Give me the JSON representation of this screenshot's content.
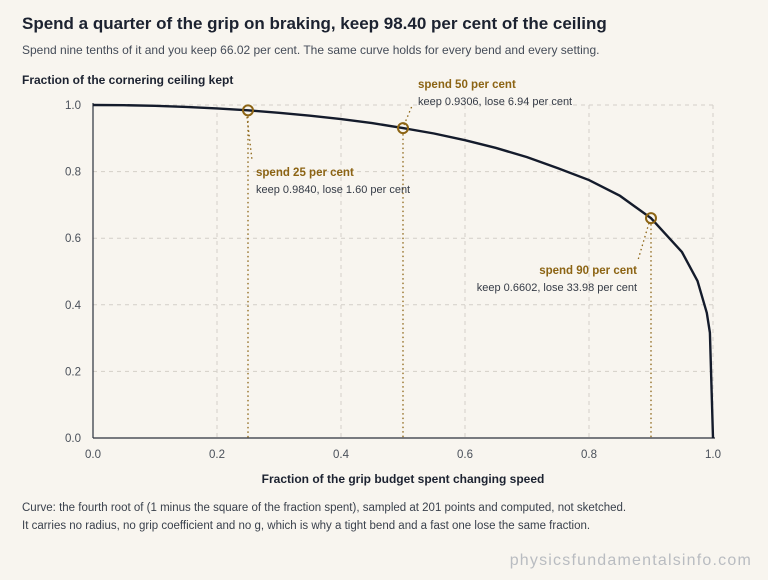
{
  "header": {
    "title": "Spend a quarter of the grip on braking, keep 98.40 per cent of the ceiling",
    "subtitle": "Spend nine tenths of it and you keep 66.02 per cent. The same curve holds for every bend and every setting."
  },
  "chart_data": {
    "type": "line",
    "ylabel": "Fraction of the cornering ceiling kept",
    "xlabel": "Fraction of the grip budget spent changing speed",
    "xlim": [
      0,
      1
    ],
    "ylim": [
      0,
      1
    ],
    "xticks": [
      "0.0",
      "0.2",
      "0.4",
      "0.6",
      "0.8",
      "1.0"
    ],
    "yticks": [
      "0.0",
      "0.2",
      "0.4",
      "0.6",
      "0.8",
      "1.0"
    ],
    "grid": true,
    "series": [
      {
        "x": [
          0.0,
          0.05,
          0.1,
          0.15,
          0.2,
          0.25,
          0.3,
          0.35,
          0.4,
          0.45,
          0.5,
          0.55,
          0.6,
          0.65,
          0.7,
          0.75,
          0.8,
          0.85,
          0.9,
          0.95,
          0.975,
          0.99,
          0.995,
          1.0
        ],
        "y": [
          1.0,
          0.9994,
          0.9975,
          0.9943,
          0.9898,
          0.984,
          0.9767,
          0.968,
          0.9577,
          0.9458,
          0.9306,
          0.9144,
          0.8944,
          0.871,
          0.8434,
          0.8099,
          0.7746,
          0.7272,
          0.6602,
          0.5582,
          0.4716,
          0.3759,
          0.3164,
          0.0
        ]
      }
    ],
    "annotations": [
      {
        "x": 0.25,
        "y": 0.984,
        "title": "spend 25 per cent",
        "detail": "keep 0.9840, lose 1.60 per cent"
      },
      {
        "x": 0.5,
        "y": 0.9306,
        "title": "spend 50 per cent",
        "detail": "keep 0.9306, lose 6.94 per cent"
      },
      {
        "x": 0.9,
        "y": 0.6602,
        "title": "spend 90 per cent",
        "detail": "keep 0.6602, lose 33.98 per cent"
      }
    ]
  },
  "caption": {
    "line1": "Curve: the fourth root of (1 minus the square of the fraction spent), sampled at 201 points and computed, not sketched.",
    "line2": "It carries no radius, no grip coefficient and no g, which is why a tight bend and a fast one lose the same fraction."
  },
  "watermark": "physicsfundamentalsinfo.com",
  "colors": {
    "background": "#f8f5ef",
    "curve": "#141b2b",
    "accent": "#8c6414",
    "grid": "#d3cfc8"
  }
}
